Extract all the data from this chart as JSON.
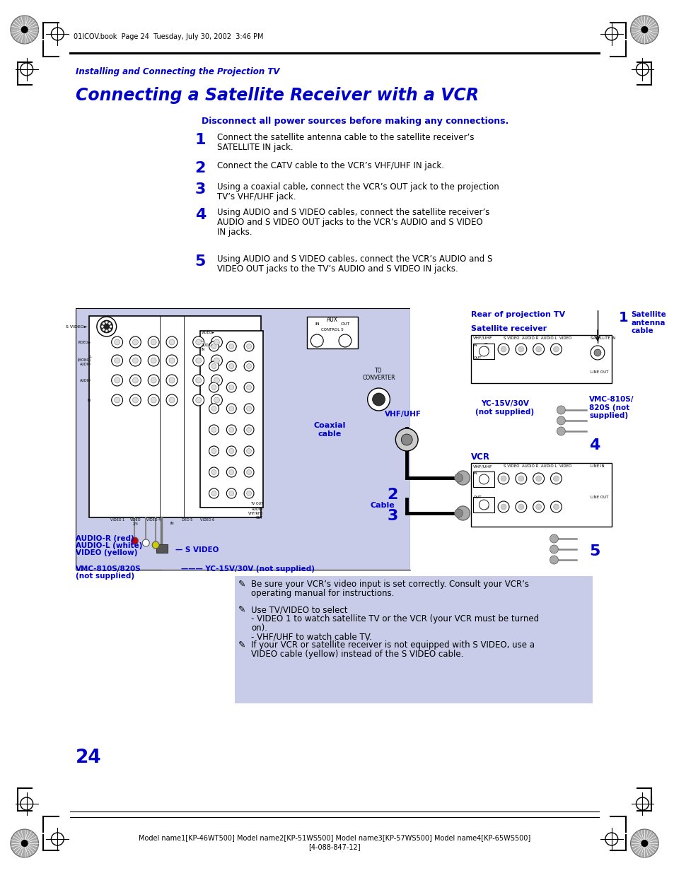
{
  "page_bg": "#ffffff",
  "header_text": "01ICOV.book  Page 24  Tuesday, July 30, 2002  3:46 PM",
  "section_label": "Installing and Connecting the Projection TV",
  "title": "Connecting a Satellite Receiver with a VCR",
  "warning": "Disconnect all power sources before making any connections.",
  "steps": [
    [
      "1",
      "Connect the satellite antenna cable to the satellite receiver’s\nSATELLITE IN jack."
    ],
    [
      "2",
      "Connect the CATV cable to the VCR’s VHF/UHF IN jack."
    ],
    [
      "3",
      "Using a coaxial cable, connect the VCR’s OUT jack to the projection\nTV’s VHF/UHF jack."
    ],
    [
      "4",
      "Using AUDIO and S VIDEO cables, connect the satellite receiver’s\nAUDIO and S VIDEO OUT jacks to the VCR’s AUDIO and S VIDEO\nIN jacks."
    ],
    [
      "5",
      "Using AUDIO and S VIDEO cables, connect the VCR’s AUDIO and S\nVIDEO OUT jacks to the TV’s AUDIO and S VIDEO IN jacks."
    ]
  ],
  "notes": [
    "Be sure your VCR’s video input is set correctly. Consult your VCR’s\noperating manual for instructions.",
    "Use TV/VIDEO to select\n- VIDEO 1 to watch satellite TV or the VCR (your VCR must be turned\non).\n- VHF/UHF to watch cable TV.",
    "If your VCR or satellite receiver is not equipped with S VIDEO, use a\nVIDEO cable (yellow) instead of the S VIDEO cable."
  ],
  "footer_line1": "Model name1[KP-46WT500] Model name2[KP-51WS500] Model name3[KP-57WS500] Model name4[KP-65WS500]",
  "footer_line2": "[4-088-847-12]",
  "page_number": "24",
  "blue": "#0000cc",
  "diag_bg": "#c8cce8",
  "note_bg": "#c8cce8"
}
